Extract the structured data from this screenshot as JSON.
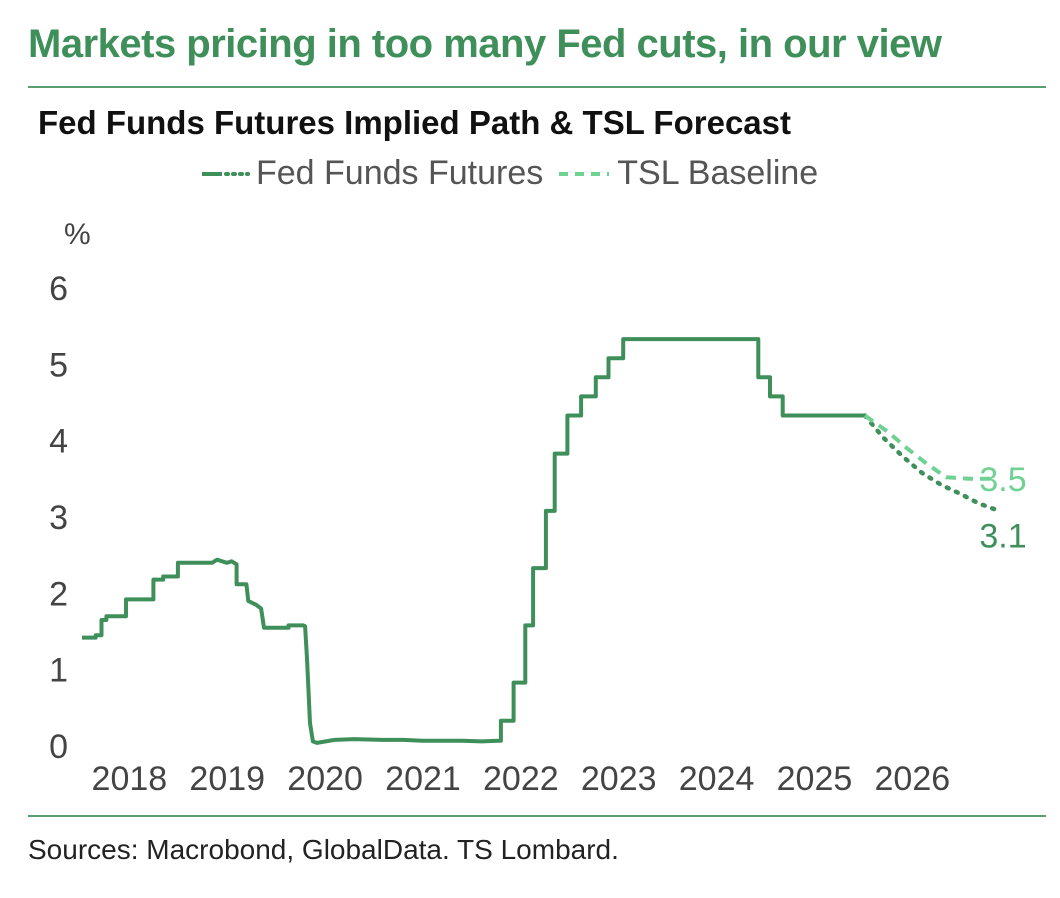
{
  "headline": "Markets pricing in too many Fed cuts, in our view",
  "source": "Sources: Macrobond, GlobalData. TS Lombard.",
  "colors": {
    "accent": "#3f8f5a",
    "futures": "#3f8f5a",
    "baseline": "#6fd192",
    "rule": "#5a9e70",
    "text": "#444444"
  },
  "chart_data": {
    "type": "line",
    "title": "Fed Funds Futures Implied Path & TSL Forecast",
    "ylabel": "%",
    "xlabel": "",
    "ylim": [
      0,
      6
    ],
    "yticks": [
      "0",
      "1",
      "2",
      "3",
      "4",
      "5",
      "6"
    ],
    "xlim": [
      2017.7,
      2027.1
    ],
    "xticks": [
      {
        "label": "2018",
        "x": 2018.0
      },
      {
        "label": "2019",
        "x": 2019.0
      },
      {
        "label": "2020",
        "x": 2020.0
      },
      {
        "label": "2021",
        "x": 2021.0
      },
      {
        "label": "2022",
        "x": 2022.0
      },
      {
        "label": "2023",
        "x": 2023.0
      },
      {
        "label": "2024",
        "x": 2024.0
      },
      {
        "label": "2025",
        "x": 2025.0
      },
      {
        "label": "2026",
        "x": 2026.0
      }
    ],
    "legend": [
      {
        "name": "Fed Funds Futures",
        "style": "solid-dotted"
      },
      {
        "name": "TSL Baseline",
        "style": "dashed"
      }
    ],
    "series": [
      {
        "name": "Fed Funds Futures",
        "style": "solid",
        "color": "#3f8f5a",
        "points": [
          [
            2017.72,
            1.42
          ],
          [
            2017.86,
            1.42
          ],
          [
            2017.86,
            1.45
          ],
          [
            2017.92,
            1.45
          ],
          [
            2017.92,
            1.65
          ],
          [
            2017.97,
            1.65
          ],
          [
            2017.97,
            1.7
          ],
          [
            2018.17,
            1.7
          ],
          [
            2018.17,
            1.92
          ],
          [
            2018.45,
            1.92
          ],
          [
            2018.45,
            2.18
          ],
          [
            2018.55,
            2.18
          ],
          [
            2018.55,
            2.22
          ],
          [
            2018.7,
            2.22
          ],
          [
            2018.7,
            2.4
          ],
          [
            2019.05,
            2.4
          ],
          [
            2019.1,
            2.44
          ],
          [
            2019.2,
            2.4
          ],
          [
            2019.25,
            2.42
          ],
          [
            2019.3,
            2.38
          ],
          [
            2019.3,
            2.12
          ],
          [
            2019.4,
            2.12
          ],
          [
            2019.42,
            1.9
          ],
          [
            2019.5,
            1.85
          ],
          [
            2019.55,
            1.8
          ],
          [
            2019.58,
            1.55
          ],
          [
            2019.83,
            1.55
          ],
          [
            2019.83,
            1.58
          ],
          [
            2019.98,
            1.58
          ],
          [
            2020.0,
            1.57
          ],
          [
            2020.02,
            1.12
          ],
          [
            2020.05,
            0.3
          ],
          [
            2020.08,
            0.06
          ],
          [
            2020.12,
            0.04
          ],
          [
            2020.3,
            0.08
          ],
          [
            2020.5,
            0.09
          ],
          [
            2020.8,
            0.08
          ],
          [
            2021.0,
            0.08
          ],
          [
            2021.2,
            0.07
          ],
          [
            2021.4,
            0.07
          ],
          [
            2021.6,
            0.07
          ],
          [
            2021.8,
            0.06
          ],
          [
            2021.98,
            0.07
          ],
          [
            2022.0,
            0.07
          ],
          [
            2022.0,
            0.33
          ],
          [
            2022.13,
            0.33
          ],
          [
            2022.13,
            0.83
          ],
          [
            2022.25,
            0.83
          ],
          [
            2022.25,
            1.58
          ],
          [
            2022.33,
            1.58
          ],
          [
            2022.33,
            2.33
          ],
          [
            2022.46,
            2.33
          ],
          [
            2022.46,
            3.08
          ],
          [
            2022.55,
            3.08
          ],
          [
            2022.55,
            3.83
          ],
          [
            2022.68,
            3.83
          ],
          [
            2022.68,
            4.33
          ],
          [
            2022.82,
            4.33
          ],
          [
            2022.82,
            4.58
          ],
          [
            2022.97,
            4.58
          ],
          [
            2022.97,
            4.83
          ],
          [
            2023.1,
            4.83
          ],
          [
            2023.1,
            5.08
          ],
          [
            2023.25,
            5.08
          ],
          [
            2023.25,
            5.33
          ],
          [
            2024.63,
            5.33
          ],
          [
            2024.63,
            4.83
          ],
          [
            2024.75,
            4.83
          ],
          [
            2024.75,
            4.58
          ],
          [
            2024.88,
            4.58
          ],
          [
            2024.88,
            4.33
          ],
          [
            2025.72,
            4.33
          ]
        ]
      },
      {
        "name": "Fed Funds Futures (implied path)",
        "style": "dotted",
        "color": "#3f8f5a",
        "points": [
          [
            2025.72,
            4.33
          ],
          [
            2025.9,
            4.05
          ],
          [
            2026.1,
            3.8
          ],
          [
            2026.3,
            3.58
          ],
          [
            2026.5,
            3.42
          ],
          [
            2026.7,
            3.3
          ],
          [
            2026.88,
            3.18
          ],
          [
            2027.05,
            3.1
          ]
        ]
      },
      {
        "name": "TSL Baseline",
        "style": "dashed",
        "color": "#6fd192",
        "points": [
          [
            2025.72,
            4.33
          ],
          [
            2025.95,
            4.12
          ],
          [
            2026.15,
            3.9
          ],
          [
            2026.35,
            3.7
          ],
          [
            2026.55,
            3.52
          ],
          [
            2026.8,
            3.5
          ],
          [
            2027.05,
            3.5
          ]
        ]
      }
    ],
    "annotations": [
      {
        "text": "3.5",
        "x": 2027.05,
        "y": 3.5,
        "color": "#6fd192"
      },
      {
        "text": "3.1",
        "x": 2027.05,
        "y": 3.1,
        "color": "#3f8f5a"
      }
    ]
  }
}
